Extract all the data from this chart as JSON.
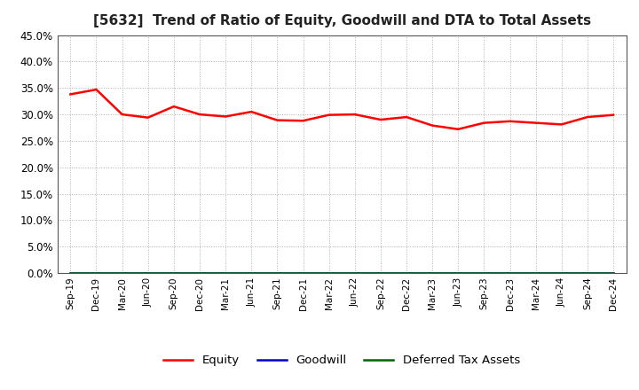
{
  "title": "[5632]  Trend of Ratio of Equity, Goodwill and DTA to Total Assets",
  "x_labels": [
    "Sep-19",
    "Dec-19",
    "Mar-20",
    "Jun-20",
    "Sep-20",
    "Dec-20",
    "Mar-21",
    "Jun-21",
    "Sep-21",
    "Dec-21",
    "Mar-22",
    "Jun-22",
    "Sep-22",
    "Dec-22",
    "Mar-23",
    "Jun-23",
    "Sep-23",
    "Dec-23",
    "Mar-24",
    "Jun-24",
    "Sep-24",
    "Dec-24"
  ],
  "equity": [
    0.338,
    0.347,
    0.3,
    0.294,
    0.315,
    0.3,
    0.296,
    0.305,
    0.289,
    0.288,
    0.299,
    0.3,
    0.29,
    0.295,
    0.279,
    0.272,
    0.284,
    0.287,
    0.284,
    0.281,
    0.295,
    0.299
  ],
  "goodwill": [
    0.0,
    0.0,
    0.0,
    0.0,
    0.0,
    0.0,
    0.0,
    0.0,
    0.0,
    0.0,
    0.0,
    0.0,
    0.0,
    0.0,
    0.0,
    0.0,
    0.0,
    0.0,
    0.0,
    0.0,
    0.0,
    0.0
  ],
  "dta": [
    0.0,
    0.0,
    0.0,
    0.0,
    0.0,
    0.0,
    0.0,
    0.0,
    0.0,
    0.0,
    0.0,
    0.0,
    0.0,
    0.0,
    0.0,
    0.0,
    0.0,
    0.0,
    0.0,
    0.0,
    0.0,
    0.0
  ],
  "equity_color": "#ff0000",
  "goodwill_color": "#0000cd",
  "dta_color": "#006400",
  "ylim": [
    0.0,
    0.45
  ],
  "yticks": [
    0.0,
    0.05,
    0.1,
    0.15,
    0.2,
    0.25,
    0.3,
    0.35,
    0.4,
    0.45
  ],
  "background_color": "#ffffff",
  "plot_bg_color": "#ffffff",
  "grid_color": "#b0b0b0",
  "title_fontsize": 11,
  "legend_labels": [
    "Equity",
    "Goodwill",
    "Deferred Tax Assets"
  ]
}
